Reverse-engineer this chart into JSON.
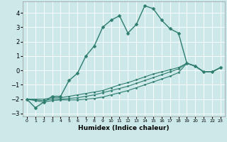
{
  "xlabel": "Humidex (Indice chaleur)",
  "background_color": "#cce8e8",
  "grid_color": "#ffffff",
  "line_color": "#2e7d6e",
  "xlim": [
    -0.5,
    23.5
  ],
  "ylim": [
    -3.2,
    4.8
  ],
  "yticks": [
    -3,
    -2,
    -1,
    0,
    1,
    2,
    3,
    4
  ],
  "xticks": [
    0,
    1,
    2,
    3,
    4,
    5,
    6,
    7,
    8,
    9,
    10,
    11,
    12,
    13,
    14,
    15,
    16,
    17,
    18,
    19,
    20,
    21,
    22,
    23
  ],
  "series": [
    {
      "x": [
        0,
        1,
        2,
        3,
        4,
        5,
        6,
        7,
        8,
        9,
        10,
        11,
        12,
        13,
        14,
        15,
        16,
        17,
        18,
        19,
        20,
        21,
        22,
        23
      ],
      "y": [
        -2.0,
        -2.6,
        -2.2,
        -1.8,
        -1.8,
        -0.7,
        -0.2,
        1.0,
        1.7,
        3.0,
        3.5,
        3.8,
        2.6,
        3.2,
        4.5,
        4.3,
        3.5,
        2.9,
        2.6,
        0.5,
        0.3,
        -0.1,
        -0.1,
        0.2
      ],
      "linewidth": 1.0,
      "markersize": 2.5
    },
    {
      "x": [
        0,
        1,
        2,
        3,
        4,
        5,
        6,
        7,
        8,
        9,
        10,
        11,
        12,
        13,
        14,
        15,
        16,
        17,
        18,
        19,
        20,
        21,
        22,
        23
      ],
      "y": [
        -2.0,
        -2.0,
        -2.0,
        -1.9,
        -1.9,
        -1.8,
        -1.7,
        -1.6,
        -1.5,
        -1.4,
        -1.2,
        -1.0,
        -0.85,
        -0.65,
        -0.45,
        -0.25,
        -0.1,
        0.05,
        0.2,
        0.5,
        0.3,
        -0.1,
        -0.1,
        0.2
      ],
      "linewidth": 0.8,
      "markersize": 1.5
    },
    {
      "x": [
        0,
        1,
        2,
        3,
        4,
        5,
        6,
        7,
        8,
        9,
        10,
        11,
        12,
        13,
        14,
        15,
        16,
        17,
        18,
        19,
        20,
        21,
        22,
        23
      ],
      "y": [
        -2.0,
        -2.05,
        -2.1,
        -2.0,
        -2.0,
        -1.95,
        -1.9,
        -1.8,
        -1.7,
        -1.55,
        -1.4,
        -1.25,
        -1.1,
        -0.9,
        -0.7,
        -0.5,
        -0.3,
        -0.1,
        0.1,
        0.5,
        0.3,
        -0.1,
        -0.1,
        0.2
      ],
      "linewidth": 0.8,
      "markersize": 1.5
    },
    {
      "x": [
        0,
        1,
        2,
        3,
        4,
        5,
        6,
        7,
        8,
        9,
        10,
        11,
        12,
        13,
        14,
        15,
        16,
        17,
        18,
        19,
        20,
        21,
        22,
        23
      ],
      "y": [
        -2.0,
        -2.1,
        -2.2,
        -2.1,
        -2.05,
        -2.05,
        -2.05,
        -2.0,
        -1.95,
        -1.85,
        -1.7,
        -1.55,
        -1.4,
        -1.2,
        -1.0,
        -0.8,
        -0.6,
        -0.4,
        -0.15,
        0.5,
        0.3,
        -0.1,
        -0.1,
        0.2
      ],
      "linewidth": 0.8,
      "markersize": 1.5
    }
  ]
}
